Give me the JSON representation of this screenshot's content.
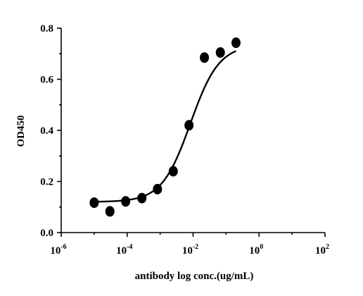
{
  "chart_data": {
    "type": "scatter",
    "title": "",
    "xlabel": "antibody log conc.(ug/mL)",
    "ylabel": "OD450",
    "xscale": "log",
    "xlim": [
      1e-06,
      100
    ],
    "ylim": [
      0,
      0.8
    ],
    "x_ticks": [
      {
        "base": "10",
        "exp": "-6",
        "value": 1e-06
      },
      {
        "base": "10",
        "exp": "-4",
        "value": 0.0001
      },
      {
        "base": "10",
        "exp": "-2",
        "value": 0.01
      },
      {
        "base": "10",
        "exp": "0",
        "value": 1
      },
      {
        "base": "10",
        "exp": "2",
        "value": 100
      }
    ],
    "y_ticks": [
      "0.0",
      "0.2",
      "0.4",
      "0.6",
      "0.8"
    ],
    "grid": false,
    "legend": "none",
    "series": [
      {
        "points": [
          {
            "x": 1e-05,
            "y": 0.117
          },
          {
            "x": 3e-05,
            "y": 0.083
          },
          {
            "x": 9e-05,
            "y": 0.122
          },
          {
            "x": 0.00028,
            "y": 0.135
          },
          {
            "x": 0.00083,
            "y": 0.17
          },
          {
            "x": 0.0025,
            "y": 0.24
          },
          {
            "x": 0.0075,
            "y": 0.42
          },
          {
            "x": 0.022,
            "y": 0.685
          },
          {
            "x": 0.067,
            "y": 0.705
          },
          {
            "x": 0.2,
            "y": 0.743
          }
        ],
        "fit": {
          "model": "4PL",
          "bottom": 0.12,
          "top": 0.735,
          "ec50": 0.0083,
          "hill": 1.0
        }
      }
    ]
  }
}
